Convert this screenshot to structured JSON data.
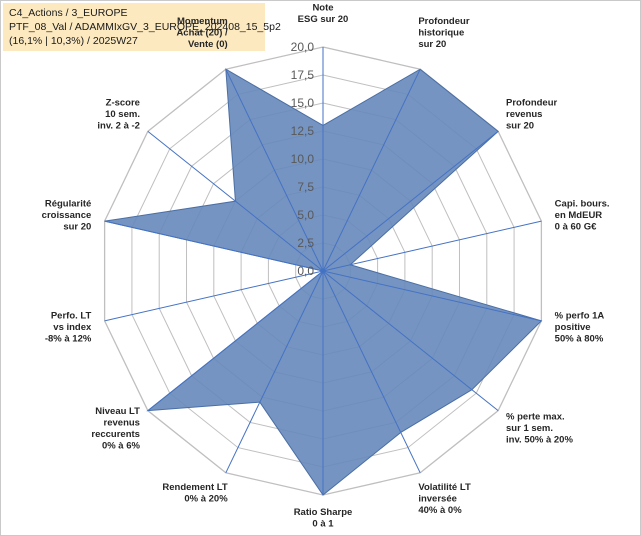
{
  "header": {
    "line1": "C4_Actions / 3_EUROPE",
    "line2": "PTF_08_Val / ADAMMIxGV_3_EUROPE_202408_15_5p2",
    "line3": "(16,1% | 10,3%) / 2025W27"
  },
  "chart_data": {
    "type": "radar",
    "r_min": 0,
    "r_max": 20,
    "tick_step": 2.5,
    "tick_labels": [
      "0,0",
      "2,5",
      "5,0",
      "7,5",
      "10,0",
      "12,5",
      "15,0",
      "17,5",
      "20,0"
    ],
    "grid": true,
    "colors": {
      "fill": "#6688bb",
      "stroke": "#4a6fa5",
      "grid": "#bfbfbf",
      "spoke": "#4472c4"
    },
    "axes": [
      {
        "label": [
          "Note",
          "ESG sur 20"
        ],
        "value": 13
      },
      {
        "label": [
          "Profondeur",
          "historique",
          "sur 20"
        ],
        "value": 20
      },
      {
        "label": [
          "Profondeur",
          "revenus",
          "sur 20"
        ],
        "value": 20
      },
      {
        "label": [
          "Capi. bours.",
          "en MdEUR",
          "0 à 60 G€"
        ],
        "value": 2.5
      },
      {
        "label": [
          "% perfo 1A",
          "positive",
          "50% à 80%"
        ],
        "value": 20
      },
      {
        "label": [
          "% perte max.",
          "sur 1 sem.",
          "inv. 50% à 20%"
        ],
        "value": 17
      },
      {
        "label": [
          "Volatilité LT",
          "inversée",
          "40% à 0%"
        ],
        "value": 16
      },
      {
        "label": [
          "Ratio Sharpe",
          "0 à 1"
        ],
        "value": 20
      },
      {
        "label": [
          "Rendement LT",
          "0% à 20%"
        ],
        "value": 13
      },
      {
        "label": [
          "Niveau LT",
          "revenus",
          "reccurents",
          "0% à 6%"
        ],
        "value": 20
      },
      {
        "label": [
          "Perfo. LT",
          "vs index",
          "-8% à 12%"
        ],
        "value": 0
      },
      {
        "label": [
          "Régularité",
          "croissance",
          "sur 20"
        ],
        "value": 20
      },
      {
        "label": [
          "Z-score",
          "10 sem.",
          "inv. 2 à -2"
        ],
        "value": 10
      },
      {
        "label": [
          "Momentum",
          "Achat (20) /",
          "Vente (0)"
        ],
        "value": 20
      }
    ]
  }
}
